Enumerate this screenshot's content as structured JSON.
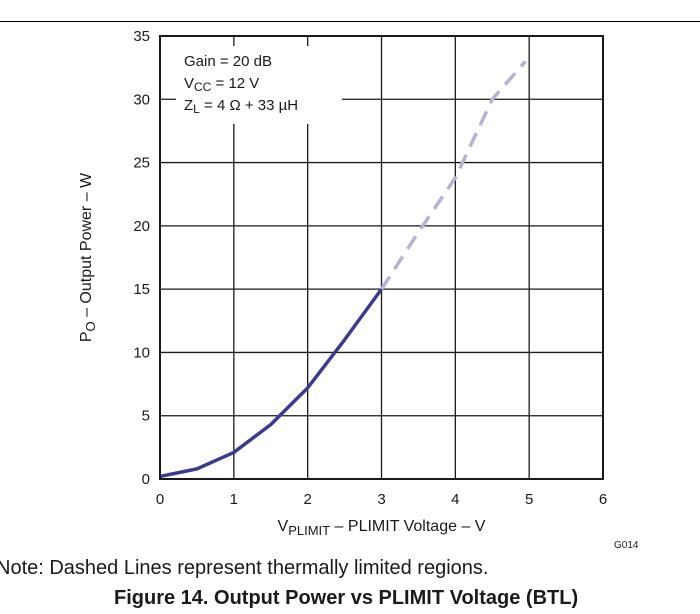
{
  "chart_data": {
    "type": "line",
    "xlabel": {
      "main": "V",
      "sub": "PLIMIT",
      "rest": " – PLIMIT Voltage – V"
    },
    "ylabel": {
      "main": "P",
      "sub": "O",
      "rest": " – Output Power – W"
    },
    "xlim": [
      0,
      6
    ],
    "ylim": [
      0,
      35
    ],
    "x_ticks": [
      "0",
      "1",
      "2",
      "3",
      "4",
      "5",
      "6"
    ],
    "y_ticks": [
      "0",
      "5",
      "10",
      "15",
      "20",
      "25",
      "30",
      "35"
    ],
    "grid": true,
    "annotations": [
      {
        "parts": [
          {
            "text": "Gain = 20 dB"
          }
        ]
      },
      {
        "parts": [
          {
            "text": "V"
          },
          {
            "text": "CC",
            "sub": true
          },
          {
            "text": " = 12 V"
          }
        ]
      },
      {
        "parts": [
          {
            "text": "Z"
          },
          {
            "text": "L",
            "sub": true
          },
          {
            "text": " = 4 Ω + 33 µH"
          }
        ]
      }
    ],
    "series": [
      {
        "style": "solid",
        "color": "#3b3a8c",
        "x": [
          0,
          0.5,
          1.0,
          1.5,
          2.0,
          2.5,
          3.0
        ],
        "y": [
          0.2,
          0.8,
          2.1,
          4.3,
          7.2,
          11.0,
          15.0
        ]
      },
      {
        "style": "dashed",
        "color": "#b3b3d6",
        "x": [
          3.0,
          3.5,
          4.0,
          4.5,
          4.95
        ],
        "y": [
          15.0,
          19.5,
          23.8,
          30.0,
          33.0
        ]
      }
    ],
    "code_label": "G014"
  },
  "note": "Note: Dashed Lines represent thermally limited regions.",
  "caption": "Figure 14. Output Power vs PLIMIT Voltage (BTL)"
}
